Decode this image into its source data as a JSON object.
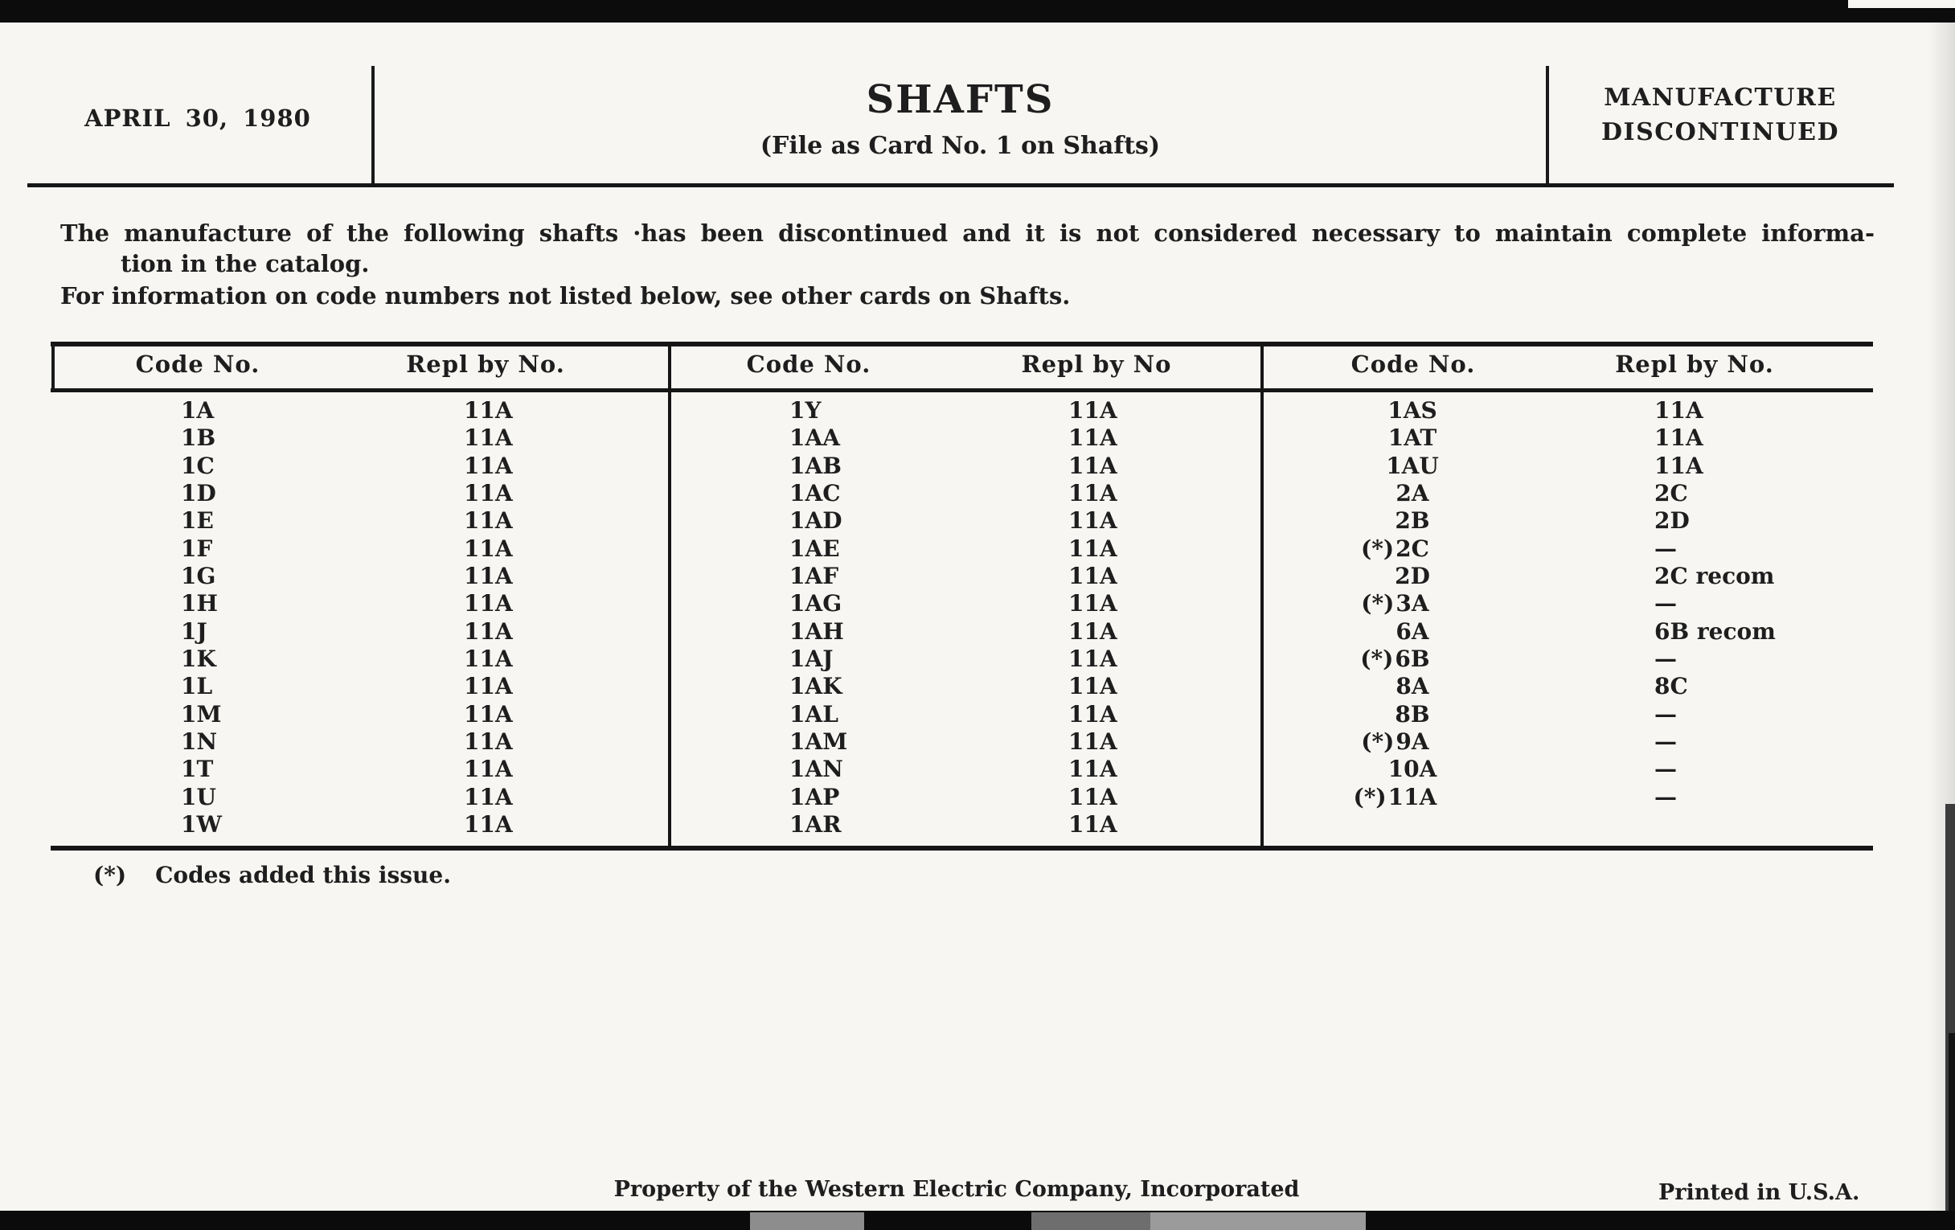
{
  "header": {
    "date": "APRIL 30, 1980",
    "title": "SHAFTS",
    "subtitle": "(File as Card No. 1 on Shafts)",
    "status_line1": "MANUFACTURE",
    "status_line2": "DISCONTINUED"
  },
  "intro": {
    "line1": "The manufacture of the following shafts ·has been discontinued and it is not considered necessary to maintain complete informa-",
    "line2": "tion in the catalog.",
    "line3": "For information on code numbers not listed below, see other cards on Shafts."
  },
  "table": {
    "sections": [
      {
        "code_header": "Code No.",
        "repl_header": "Repl by No.",
        "rows": [
          {
            "code": "1A",
            "repl": "11A"
          },
          {
            "code": "1B",
            "repl": "11A"
          },
          {
            "code": "1C",
            "repl": "11A"
          },
          {
            "code": "1D",
            "repl": "11A"
          },
          {
            "code": "1E",
            "repl": "11A"
          },
          {
            "code": "1F",
            "repl": "11A"
          },
          {
            "code": "1G",
            "repl": "11A"
          },
          {
            "code": "1H",
            "repl": "11A"
          },
          {
            "code": "1J",
            "repl": "11A"
          },
          {
            "code": "1K",
            "repl": "11A"
          },
          {
            "code": "1L",
            "repl": "11A"
          },
          {
            "code": "1M",
            "repl": "11A"
          },
          {
            "code": "1N",
            "repl": "11A"
          },
          {
            "code": "1T",
            "repl": "11A"
          },
          {
            "code": "1U",
            "repl": "11A"
          },
          {
            "code": "1W",
            "repl": "11A"
          }
        ]
      },
      {
        "code_header": "Code No.",
        "repl_header": "Repl by No",
        "rows": [
          {
            "code": "1Y",
            "repl": "11A"
          },
          {
            "code": "1AA",
            "repl": "11A"
          },
          {
            "code": "1AB",
            "repl": "11A"
          },
          {
            "code": "1AC",
            "repl": "11A"
          },
          {
            "code": "1AD",
            "repl": "11A"
          },
          {
            "code": "1AE",
            "repl": "11A"
          },
          {
            "code": "1AF",
            "repl": "11A"
          },
          {
            "code": "1AG",
            "repl": "11A"
          },
          {
            "code": "1AH",
            "repl": "11A"
          },
          {
            "code": "1AJ",
            "repl": "11A"
          },
          {
            "code": "1AK",
            "repl": "11A"
          },
          {
            "code": "1AL",
            "repl": "11A"
          },
          {
            "code": "1AM",
            "repl": "11A"
          },
          {
            "code": "1AN",
            "repl": "11A"
          },
          {
            "code": "1AP",
            "repl": "11A"
          },
          {
            "code": "1AR",
            "repl": "11A"
          }
        ]
      },
      {
        "code_header": "Code No.",
        "repl_header": "Repl by No.",
        "rows": [
          {
            "code": "1AS",
            "repl": "11A"
          },
          {
            "code": "1AT",
            "repl": "11A"
          },
          {
            "code": "1AU",
            "repl": "11A"
          },
          {
            "code": "2A",
            "repl": "2C"
          },
          {
            "code": "2B",
            "repl": "2D"
          },
          {
            "prefix": "(*)",
            "code": "2C",
            "repl": "—"
          },
          {
            "code": "2D",
            "repl": "2C recom"
          },
          {
            "prefix": "(*)",
            "code": "3A",
            "repl": "—"
          },
          {
            "code": "6A",
            "repl": "6B recom"
          },
          {
            "prefix": "(*)",
            "code": "6B",
            "repl": "—"
          },
          {
            "code": "8A",
            "repl": "8C"
          },
          {
            "code": "8B",
            "repl": "—"
          },
          {
            "prefix": "(*)",
            "code": "9A",
            "repl": "—"
          },
          {
            "code": "10A",
            "repl": "—"
          },
          {
            "prefix": "(*)",
            "code": "11A",
            "repl": "—"
          }
        ]
      }
    ]
  },
  "footnote": {
    "marker": "(*)",
    "text": "Codes added this issue."
  },
  "footer": {
    "center": "Property of the Western Electric Company, Incorporated",
    "right": "Printed in U.S.A."
  }
}
